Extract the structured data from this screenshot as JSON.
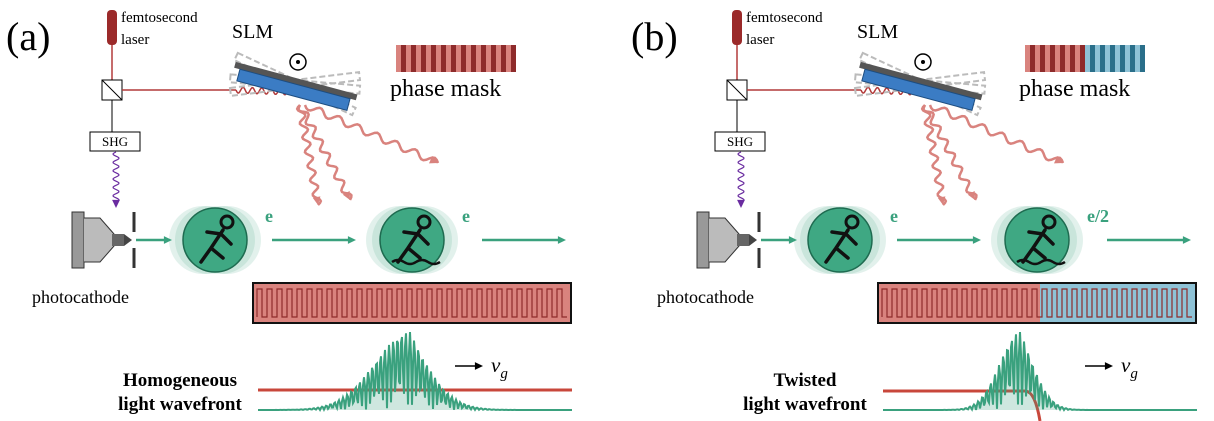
{
  "panels": [
    {
      "label": "(a)",
      "laser": [
        "femtosecond",
        "laser"
      ],
      "slm": "SLM",
      "mask": "phase mask",
      "shg": "SHG",
      "electrons": [
        "e",
        "e"
      ],
      "source": "photocathode",
      "caption": [
        "Homogeneous",
        "light wavefront"
      ],
      "velocity": {
        "symbol": "v",
        "subscript": "g"
      }
    },
    {
      "label": "(b)",
      "laser": [
        "femtosecond",
        "laser"
      ],
      "slm": "SLM",
      "mask": "phase mask",
      "shg": "SHG",
      "electrons": [
        "e",
        "e/2"
      ],
      "source": "photocathode",
      "caption": [
        "Twisted",
        "light wavefront"
      ],
      "velocity": {
        "symbol": "v",
        "subscript": "g"
      }
    }
  ]
}
